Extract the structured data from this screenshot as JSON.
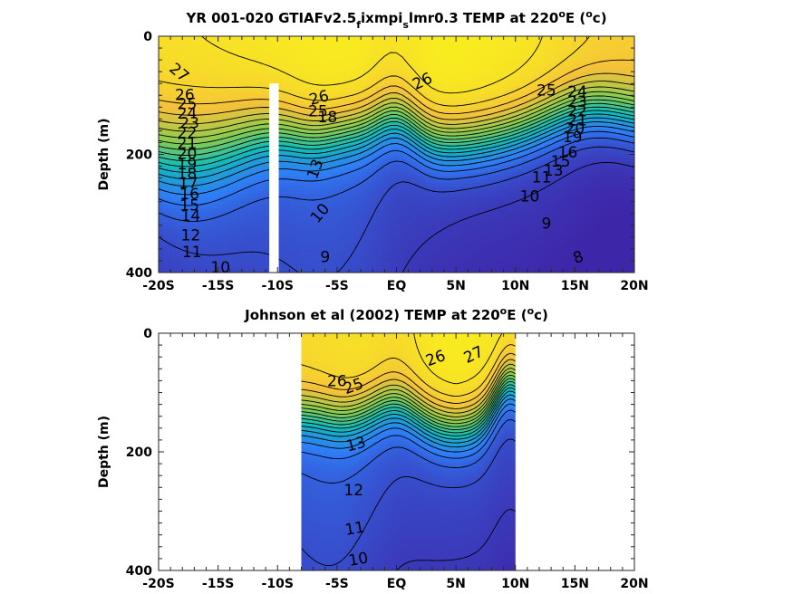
{
  "chart_data": [
    {
      "type": "heatmap",
      "title": "YR 001-020 GTIAFv2.5_fixmpi_slmr0.3 TEMP at 220°E (°c)",
      "title_parts": [
        "YR 001-020 GTIAFv2.5",
        "f",
        "ixmpi",
        "s",
        "lmr0.3 TEMP at 220",
        "o",
        "E (",
        "o",
        "c)"
      ],
      "xlabel": "",
      "ylabel": "Depth (m)",
      "x_tick_labels": [
        "-20S",
        "-15S",
        "-10S",
        "-5S",
        "EQ",
        "5N",
        "10N",
        "15N",
        "20N"
      ],
      "x_tick_values": [
        -20,
        -15,
        -10,
        -5,
        0,
        5,
        10,
        15,
        20
      ],
      "y_tick_labels": [
        "0",
        "200",
        "400"
      ],
      "y_tick_values": [
        0,
        200,
        400
      ],
      "xlim": [
        -20,
        20
      ],
      "ylim": [
        400,
        0
      ],
      "data_extent_lat": [
        -20,
        20
      ],
      "masked_lat_band": [
        -10.7,
        -9.9
      ],
      "masked_depth_from": 80,
      "colormap": [
        "#3e26a8",
        "#2f7cf6",
        "#12bdb9",
        "#86cc51",
        "#f5c13a",
        "#f9fb15"
      ],
      "color_range": [
        7,
        29
      ],
      "contour_labels": [
        {
          "text": "27",
          "lat": -18.3,
          "depth": 62,
          "rot": 40
        },
        {
          "text": "26",
          "lat": -17.8,
          "depth": 100,
          "rot": 0
        },
        {
          "text": "25",
          "lat": -17.6,
          "depth": 116,
          "rot": 0
        },
        {
          "text": "24",
          "lat": -17.6,
          "depth": 132,
          "rot": 0
        },
        {
          "text": "23",
          "lat": -17.4,
          "depth": 148,
          "rot": 0
        },
        {
          "text": "22",
          "lat": -17.6,
          "depth": 165,
          "rot": 0
        },
        {
          "text": "21",
          "lat": -17.6,
          "depth": 182,
          "rot": 0
        },
        {
          "text": "20",
          "lat": -17.6,
          "depth": 200,
          "rot": 0
        },
        {
          "text": "19",
          "lat": -17.6,
          "depth": 218,
          "rot": 0
        },
        {
          "text": "18",
          "lat": -17.6,
          "depth": 234,
          "rot": 0
        },
        {
          "text": "17",
          "lat": -17.5,
          "depth": 250,
          "rot": 0
        },
        {
          "text": "16",
          "lat": -17.4,
          "depth": 268,
          "rot": 0
        },
        {
          "text": "15",
          "lat": -17.4,
          "depth": 287,
          "rot": 0
        },
        {
          "text": "14",
          "lat": -17.3,
          "depth": 305,
          "rot": 0
        },
        {
          "text": "12",
          "lat": -17.3,
          "depth": 338,
          "rot": 0
        },
        {
          "text": "11",
          "lat": -17.2,
          "depth": 366,
          "rot": 0
        },
        {
          "text": "10",
          "lat": -14.8,
          "depth": 392,
          "rot": 0
        },
        {
          "text": "26",
          "lat": -6.5,
          "depth": 105,
          "rot": -15
        },
        {
          "text": "25",
          "lat": -6.6,
          "depth": 128,
          "rot": 0
        },
        {
          "text": "18",
          "lat": -5.8,
          "depth": 138,
          "rot": 0
        },
        {
          "text": "13",
          "lat": -6.8,
          "depth": 225,
          "rot": -70
        },
        {
          "text": "10",
          "lat": -6.4,
          "depth": 300,
          "rot": -50
        },
        {
          "text": "9",
          "lat": -6.0,
          "depth": 375,
          "rot": 0
        },
        {
          "text": "26",
          "lat": 2.2,
          "depth": 77,
          "rot": -25
        },
        {
          "text": "25",
          "lat": 12.6,
          "depth": 93,
          "rot": 0
        },
        {
          "text": "24",
          "lat": 15.2,
          "depth": 95,
          "rot": 0
        },
        {
          "text": "23",
          "lat": 15.2,
          "depth": 112,
          "rot": 0
        },
        {
          "text": "22",
          "lat": 15.2,
          "depth": 128,
          "rot": 0
        },
        {
          "text": "21",
          "lat": 15.2,
          "depth": 143,
          "rot": 0
        },
        {
          "text": "20",
          "lat": 15.0,
          "depth": 157,
          "rot": 0
        },
        {
          "text": "19",
          "lat": 14.8,
          "depth": 172,
          "rot": 0
        },
        {
          "text": "16",
          "lat": 14.4,
          "depth": 198,
          "rot": 0
        },
        {
          "text": "15",
          "lat": 13.8,
          "depth": 213,
          "rot": 0
        },
        {
          "text": "13",
          "lat": 13.2,
          "depth": 228,
          "rot": 0
        },
        {
          "text": "11",
          "lat": 12.2,
          "depth": 240,
          "rot": 0
        },
        {
          "text": "10",
          "lat": 11.2,
          "depth": 272,
          "rot": 0
        },
        {
          "text": "9",
          "lat": 12.6,
          "depth": 318,
          "rot": 0
        },
        {
          "text": "8",
          "lat": 15.3,
          "depth": 375,
          "rot": -20
        }
      ]
    },
    {
      "type": "heatmap",
      "title": "Johnson et al (2002) TEMP at 220°E (°c)",
      "title_parts": [
        "Johnson et al (2002) TEMP at 220",
        "o",
        "E (",
        "o",
        "c)"
      ],
      "xlabel": "",
      "ylabel": "Depth (m)",
      "x_tick_labels": [
        "-20S",
        "-15S",
        "-10S",
        "-5S",
        "EQ",
        "5N",
        "10N",
        "15N",
        "20N"
      ],
      "x_tick_values": [
        -20,
        -15,
        -10,
        -5,
        0,
        5,
        10,
        15,
        20
      ],
      "y_tick_labels": [
        "0",
        "200",
        "400"
      ],
      "y_tick_values": [
        0,
        200,
        400
      ],
      "xlim": [
        -20,
        20
      ],
      "ylim": [
        400,
        0
      ],
      "data_extent_lat": [
        -8,
        10
      ],
      "colormap": [
        "#3e26a8",
        "#2f7cf6",
        "#12bdb9",
        "#86cc51",
        "#f5c13a",
        "#f9fb15"
      ],
      "color_range": [
        7,
        29
      ],
      "contour_labels": [
        {
          "text": "27",
          "lat": 6.5,
          "depth": 37,
          "rot": -25
        },
        {
          "text": "26",
          "lat": 3.3,
          "depth": 43,
          "rot": -20
        },
        {
          "text": "26",
          "lat": -5.0,
          "depth": 82,
          "rot": 0
        },
        {
          "text": "25",
          "lat": -3.6,
          "depth": 90,
          "rot": -20
        },
        {
          "text": "13",
          "lat": -3.4,
          "depth": 188,
          "rot": -15
        },
        {
          "text": "12",
          "lat": -3.6,
          "depth": 266,
          "rot": 0
        },
        {
          "text": "11",
          "lat": -3.5,
          "depth": 330,
          "rot": -10
        },
        {
          "text": "10",
          "lat": -3.2,
          "depth": 382,
          "rot": -10
        }
      ]
    }
  ]
}
